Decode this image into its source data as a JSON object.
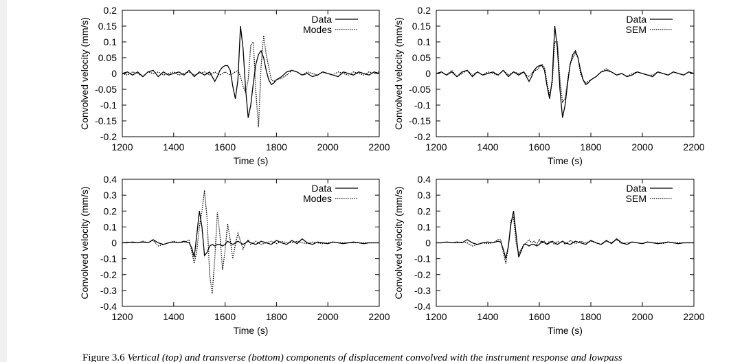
{
  "chart_data": [
    {
      "type": "line",
      "xlabel": "Time (s)",
      "ylabel": "Convolved velocity (mm/s)",
      "x": [
        1200,
        1220,
        1240,
        1260,
        1280,
        1300,
        1320,
        1340,
        1360,
        1380,
        1400,
        1420,
        1440,
        1460,
        1480,
        1500,
        1520,
        1540,
        1550,
        1560,
        1570,
        1580,
        1590,
        1600,
        1610,
        1620,
        1630,
        1640,
        1650,
        1660,
        1670,
        1680,
        1690,
        1700,
        1710,
        1720,
        1730,
        1740,
        1750,
        1760,
        1770,
        1780,
        1790,
        1800,
        1820,
        1840,
        1860,
        1880,
        1900,
        1920,
        1940,
        1960,
        1980,
        2000,
        2020,
        2040,
        2060,
        2080,
        2100,
        2120,
        2140,
        2160,
        2180,
        2200
      ],
      "xlim": [
        1200,
        2200
      ],
      "xticks": [
        1200,
        1400,
        1600,
        1800,
        2000,
        2200
      ],
      "ylim": [
        -0.2,
        0.2
      ],
      "yticks": [
        -0.2,
        -0.15,
        -0.1,
        -0.05,
        0,
        0.05,
        0.1,
        0.15,
        0.2
      ],
      "legend": "upper right",
      "series": [
        {
          "name": "Data",
          "color": "#000000",
          "line_style": "solid",
          "values": [
            0,
            0.005,
            -0.005,
            0.005,
            -0.01,
            0.005,
            0.01,
            -0.01,
            0.005,
            -0.005,
            0,
            0.005,
            -0.005,
            0.01,
            -0.01,
            0.005,
            -0.005,
            0.005,
            -0.01,
            -0.025,
            -0.01,
            0.01,
            0.02,
            0.025,
            0.025,
            0.01,
            -0.04,
            -0.08,
            -0.02,
            0.15,
            0.08,
            -0.05,
            -0.14,
            -0.1,
            -0.03,
            0.03,
            0.06,
            0.072,
            0.05,
            0.01,
            -0.02,
            -0.035,
            -0.03,
            -0.02,
            -0.01,
            0.005,
            0.01,
            0.005,
            -0.005,
            0,
            -0.01,
            -0.005,
            0.005,
            0,
            -0.005,
            -0.01,
            0.005,
            0,
            -0.005,
            0.005,
            0,
            -0.005,
            0.005,
            0
          ]
        },
        {
          "name": "Modes",
          "color": "#000000",
          "line_style": "dotted",
          "values": [
            0,
            -0.005,
            0.005,
            0,
            -0.01,
            0.005,
            0,
            0.005,
            -0.005,
            0,
            0.005,
            -0.005,
            0,
            0.005,
            -0.005,
            0,
            0.005,
            -0.005,
            0,
            0.005,
            0,
            -0.005,
            0,
            0.005,
            0,
            -0.005,
            0,
            0.005,
            0.01,
            -0.01,
            -0.04,
            -0.06,
            -0.02,
            0.09,
            0.1,
            -0.06,
            -0.17,
            0.02,
            0.12,
            0.06,
            0.02,
            -0.02,
            -0.025,
            -0.02,
            -0.015,
            -0.005,
            0.01,
            0.005,
            -0.005,
            0.005,
            0,
            -0.005,
            0.005,
            0,
            -0.005,
            0.005,
            0,
            -0.005,
            0.005,
            0,
            -0.005,
            0.005,
            0,
            0.005
          ]
        }
      ]
    },
    {
      "type": "line",
      "xlabel": "Time (s)",
      "ylabel": "Convolved velocity (mm/s)",
      "x": [
        1200,
        1220,
        1240,
        1260,
        1280,
        1300,
        1320,
        1340,
        1360,
        1380,
        1400,
        1420,
        1440,
        1460,
        1480,
        1500,
        1520,
        1540,
        1550,
        1560,
        1570,
        1580,
        1590,
        1600,
        1610,
        1620,
        1630,
        1640,
        1650,
        1660,
        1670,
        1680,
        1690,
        1700,
        1710,
        1720,
        1730,
        1740,
        1750,
        1760,
        1770,
        1780,
        1790,
        1800,
        1820,
        1840,
        1860,
        1880,
        1900,
        1920,
        1940,
        1960,
        1980,
        2000,
        2020,
        2040,
        2060,
        2080,
        2100,
        2120,
        2140,
        2160,
        2180,
        2200
      ],
      "xlim": [
        1200,
        2200
      ],
      "xticks": [
        1200,
        1400,
        1600,
        1800,
        2000,
        2200
      ],
      "ylim": [
        -0.2,
        0.2
      ],
      "yticks": [
        -0.2,
        -0.15,
        -0.1,
        -0.05,
        0,
        0.05,
        0.1,
        0.15,
        0.2
      ],
      "legend": "upper right",
      "series": [
        {
          "name": "Data",
          "color": "#000000",
          "line_style": "solid",
          "values": [
            0,
            0.005,
            -0.005,
            0.005,
            -0.01,
            0.005,
            0.01,
            -0.01,
            0.005,
            -0.005,
            0,
            0.005,
            -0.005,
            0.01,
            -0.01,
            0.005,
            -0.005,
            0.005,
            -0.01,
            -0.025,
            -0.01,
            0.01,
            0.02,
            0.025,
            0.025,
            0.01,
            -0.04,
            -0.08,
            -0.02,
            0.15,
            0.08,
            -0.05,
            -0.14,
            -0.1,
            -0.03,
            0.03,
            0.06,
            0.072,
            0.05,
            0.01,
            -0.02,
            -0.035,
            -0.03,
            -0.02,
            -0.01,
            0.005,
            0.01,
            0.005,
            -0.005,
            0,
            -0.01,
            -0.005,
            0.005,
            0,
            -0.005,
            -0.01,
            0.005,
            0,
            -0.005,
            0.005,
            0,
            -0.005,
            0.005,
            0
          ]
        },
        {
          "name": "SEM",
          "color": "#000000",
          "line_style": "dotted",
          "values": [
            0,
            0.005,
            -0.005,
            0.01,
            -0.01,
            0,
            0.01,
            -0.005,
            0.005,
            -0.005,
            0.005,
            0,
            -0.005,
            0.01,
            -0.005,
            0.005,
            0,
            0.005,
            -0.005,
            -0.01,
            0,
            0.01,
            0.01,
            0.02,
            0.03,
            0.02,
            -0.03,
            -0.07,
            -0.03,
            0.1,
            0.1,
            -0.02,
            -0.09,
            -0.08,
            -0.02,
            0.03,
            0.05,
            0.065,
            0.05,
            0,
            -0.02,
            -0.03,
            -0.025,
            -0.02,
            -0.01,
            0.005,
            0.015,
            0.005,
            -0.005,
            0,
            -0.01,
            0,
            0.005,
            0,
            -0.005,
            -0.005,
            0.005,
            0,
            -0.005,
            0.005,
            0,
            -0.005,
            0.005,
            0
          ]
        }
      ]
    },
    {
      "type": "line",
      "xlabel": "Time (s)",
      "ylabel": "Convolved velocity (mm/s)",
      "x": [
        1200,
        1220,
        1240,
        1260,
        1280,
        1300,
        1320,
        1340,
        1360,
        1380,
        1400,
        1420,
        1440,
        1450,
        1460,
        1470,
        1480,
        1490,
        1500,
        1510,
        1520,
        1530,
        1540,
        1550,
        1560,
        1570,
        1580,
        1590,
        1600,
        1610,
        1620,
        1630,
        1640,
        1650,
        1660,
        1670,
        1680,
        1690,
        1700,
        1720,
        1740,
        1760,
        1780,
        1800,
        1820,
        1840,
        1860,
        1880,
        1900,
        1920,
        1940,
        1960,
        1980,
        2000,
        2020,
        2040,
        2060,
        2080,
        2100,
        2120,
        2140,
        2160,
        2180,
        2200
      ],
      "xlim": [
        1200,
        2200
      ],
      "xticks": [
        1200,
        1400,
        1600,
        1800,
        2000,
        2200
      ],
      "ylim": [
        -0.4,
        0.4
      ],
      "yticks": [
        -0.4,
        -0.3,
        -0.2,
        -0.1,
        0,
        0.1,
        0.2,
        0.3,
        0.4
      ],
      "legend": "upper right",
      "series": [
        {
          "name": "Data",
          "color": "#000000",
          "line_style": "solid",
          "values": [
            0,
            0,
            0.005,
            0,
            0.005,
            0,
            0.02,
            0,
            -0.01,
            0,
            0.005,
            0,
            0.01,
            0.005,
            0,
            -0.03,
            -0.09,
            0.05,
            0.2,
            0.1,
            -0.08,
            -0.06,
            -0.02,
            -0.01,
            -0.02,
            -0.01,
            -0.01,
            -0.02,
            -0.01,
            0.01,
            0,
            -0.01,
            0,
            0.01,
            0,
            -0.01,
            0,
            0.01,
            0,
            -0.01,
            0.01,
            0,
            -0.01,
            0.015,
            0,
            -0.01,
            0.015,
            -0.005,
            0.025,
            0,
            -0.01,
            0.005,
            0,
            -0.005,
            0.005,
            0,
            -0.005,
            0,
            0.005,
            0,
            -0.005,
            0,
            0,
            0
          ]
        },
        {
          "name": "Modes",
          "color": "#000000",
          "line_style": "dotted",
          "values": [
            0,
            0.005,
            0,
            0,
            0.01,
            0,
            0.015,
            -0.02,
            -0.01,
            0,
            0.01,
            0,
            0.005,
            0.01,
            0.02,
            -0.05,
            -0.13,
            -0.05,
            0.1,
            0.2,
            0.33,
            0.15,
            -0.2,
            -0.32,
            -0.1,
            0.19,
            0.05,
            -0.17,
            -0.05,
            0.12,
            0.02,
            -0.1,
            -0.01,
            0.06,
            0.01,
            -0.04,
            0,
            0.02,
            -0.01,
            0.01,
            -0.01,
            0,
            0.01,
            -0.005,
            0.01,
            0,
            0,
            0.01,
            0,
            -0.005,
            0.005,
            0,
            -0.005,
            0,
            0.005,
            0,
            0,
            0,
            0,
            0,
            0,
            0,
            0,
            0
          ]
        }
      ]
    },
    {
      "type": "line",
      "xlabel": "Time (s)",
      "ylabel": "Convolved velocity (mm/s)",
      "x": [
        1200,
        1220,
        1240,
        1260,
        1280,
        1300,
        1320,
        1340,
        1360,
        1380,
        1400,
        1420,
        1440,
        1450,
        1460,
        1470,
        1480,
        1490,
        1500,
        1510,
        1520,
        1530,
        1540,
        1550,
        1560,
        1570,
        1580,
        1590,
        1600,
        1610,
        1620,
        1630,
        1640,
        1650,
        1660,
        1670,
        1680,
        1690,
        1700,
        1720,
        1740,
        1760,
        1780,
        1800,
        1820,
        1840,
        1860,
        1880,
        1900,
        1920,
        1940,
        1960,
        1980,
        2000,
        2020,
        2040,
        2060,
        2080,
        2100,
        2120,
        2140,
        2160,
        2180,
        2200
      ],
      "xlim": [
        1200,
        2200
      ],
      "xticks": [
        1200,
        1400,
        1600,
        1800,
        2000,
        2200
      ],
      "ylim": [
        -0.4,
        0.4
      ],
      "yticks": [
        -0.4,
        -0.3,
        -0.2,
        -0.1,
        0,
        0.1,
        0.2,
        0.3,
        0.4
      ],
      "legend": "upper right",
      "series": [
        {
          "name": "Data",
          "color": "#000000",
          "line_style": "solid",
          "values": [
            0,
            0,
            0.005,
            0,
            0.005,
            0,
            0.02,
            0,
            -0.01,
            0,
            0.005,
            0,
            0.01,
            0.005,
            -0.04,
            -0.1,
            -0.02,
            0.12,
            0.2,
            0.05,
            -0.09,
            -0.05,
            -0.01,
            -0.01,
            -0.02,
            -0.01,
            -0.01,
            -0.02,
            -0.01,
            0.01,
            0,
            -0.01,
            0,
            0.01,
            0,
            -0.01,
            0,
            0.01,
            0,
            -0.01,
            0.01,
            0,
            -0.01,
            0.015,
            0,
            -0.01,
            0.015,
            -0.005,
            0.025,
            0,
            -0.01,
            0.005,
            0,
            -0.005,
            0.005,
            0,
            -0.005,
            0,
            0.005,
            0,
            -0.005,
            0,
            0,
            0
          ]
        },
        {
          "name": "SEM",
          "color": "#000000",
          "line_style": "dotted",
          "values": [
            0,
            0,
            0.005,
            0,
            0,
            0.005,
            0,
            -0.02,
            -0.01,
            0,
            -0.005,
            0,
            0.02,
            0.02,
            -0.06,
            -0.13,
            -0.02,
            0.14,
            0.16,
            0,
            -0.07,
            -0.04,
            -0.01,
            0,
            0.02,
            0,
            0.01,
            -0.01,
            0.02,
            0,
            0.01,
            -0.005,
            0.01,
            0,
            -0.01,
            0.01,
            0,
            0.01,
            -0.01,
            0.015,
            -0.005,
            0.01,
            0,
            0.01,
            0,
            -0.01,
            0.01,
            0,
            0.02,
            -0.005,
            0,
            0.005,
            0,
            -0.005,
            0.005,
            0,
            0,
            -0.005,
            0.005,
            0,
            0,
            0,
            0,
            0
          ]
        }
      ]
    }
  ],
  "caption": {
    "label": "Figure 3.6",
    "text": "Vertical (top) and transverse (bottom) components of displacement convolved with the instrument response and lowpass"
  }
}
